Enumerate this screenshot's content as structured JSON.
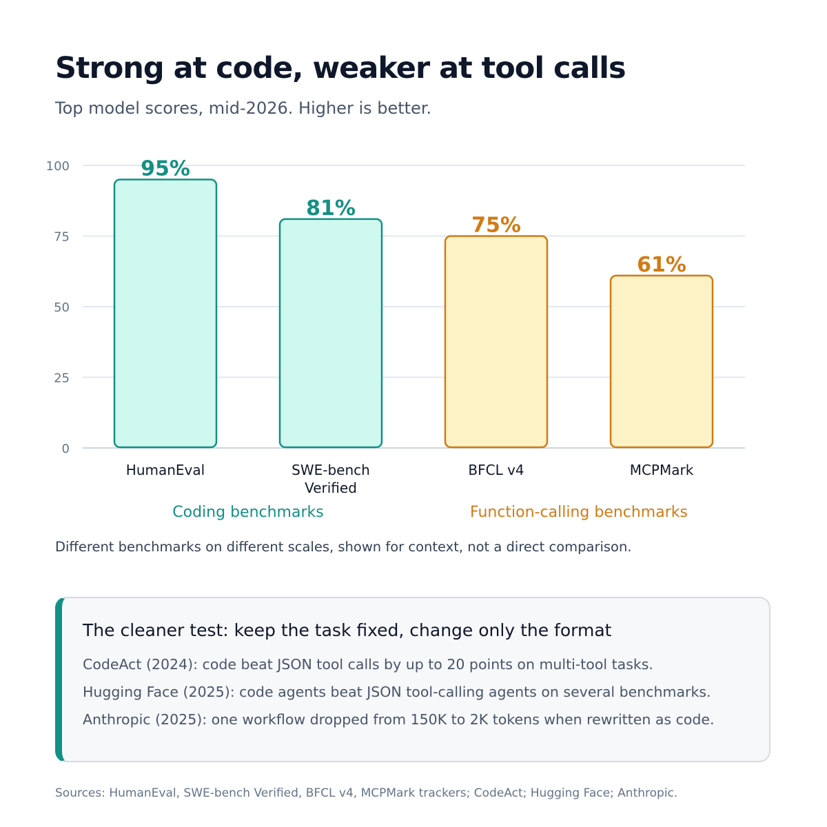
{
  "header": {
    "title": "Strong at code, weaker at tool calls",
    "subtitle": "Top model scores, mid-2026. Higher is better."
  },
  "chart_data": {
    "type": "bar",
    "categories": [
      [
        "HumanEval"
      ],
      [
        "SWE-bench",
        "Verified"
      ],
      [
        "BFCL v4"
      ],
      [
        "MCPMark"
      ]
    ],
    "values": [
      95,
      81,
      75,
      61
    ],
    "value_labels": [
      "95%",
      "81%",
      "75%",
      "61%"
    ],
    "ylim": [
      0,
      100
    ],
    "yticks": [
      0,
      25,
      50,
      75,
      100
    ],
    "grid": true,
    "groups": [
      {
        "name": "Coding benchmarks",
        "categories": [
          0,
          1
        ],
        "stroke": "#139084",
        "fill": "#cff9ef",
        "text": "#139084"
      },
      {
        "name": "Function-calling benchmarks",
        "categories": [
          2,
          3
        ],
        "stroke": "#d27a14",
        "fill": "#fdf2c6",
        "text": "#d27a14"
      }
    ]
  },
  "note": "Different benchmarks on different scales, shown for context, not a direct comparison.",
  "callout": {
    "title": "The cleaner test: keep the task fixed, change only the format",
    "lines": [
      "CodeAct (2024):  code beat JSON tool calls by up to 20 points on multi-tool tasks.",
      "Hugging Face (2025):  code agents beat JSON tool-calling agents on several benchmarks.",
      "Anthropic (2025):  one workflow dropped from 150K to 2K tokens when rewritten as code."
    ]
  },
  "sources": "Sources: HumanEval, SWE-bench Verified, BFCL v4, MCPMark trackers; CodeAct; Hugging Face; Anthropic."
}
